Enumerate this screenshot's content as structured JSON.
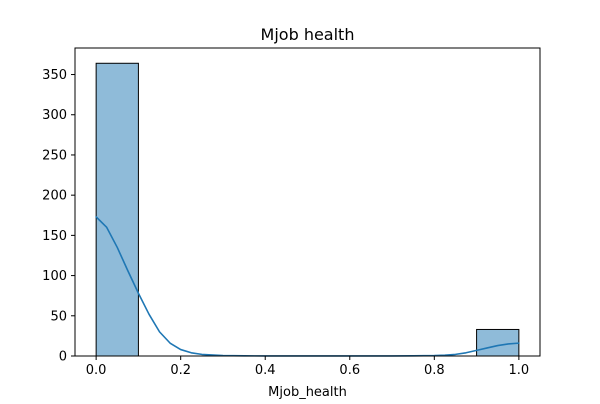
{
  "chart_data": {
    "type": "bar",
    "title": "Mjob health",
    "xlabel": "Mjob_health",
    "ylabel": "",
    "xlim": [
      -0.05,
      1.05
    ],
    "ylim": [
      0,
      383
    ],
    "grid": false,
    "bar_color": "#1f77b4",
    "bar_opacity": 0.5,
    "edge_color": "#000000",
    "kde_color": "#1f77b4",
    "bins": [
      {
        "x0": 0.0,
        "x1": 0.1,
        "count": 364
      },
      {
        "x0": 0.1,
        "x1": 0.2,
        "count": 0
      },
      {
        "x0": 0.2,
        "x1": 0.3,
        "count": 0
      },
      {
        "x0": 0.3,
        "x1": 0.4,
        "count": 0
      },
      {
        "x0": 0.4,
        "x1": 0.5,
        "count": 0
      },
      {
        "x0": 0.5,
        "x1": 0.6,
        "count": 0
      },
      {
        "x0": 0.6,
        "x1": 0.7,
        "count": 0
      },
      {
        "x0": 0.7,
        "x1": 0.8,
        "count": 0
      },
      {
        "x0": 0.8,
        "x1": 0.9,
        "count": 0
      },
      {
        "x0": 0.9,
        "x1": 1.0,
        "count": 33
      }
    ],
    "kde": {
      "x": [
        0.0,
        0.025,
        0.05,
        0.075,
        0.1,
        0.125,
        0.15,
        0.175,
        0.2,
        0.225,
        0.25,
        0.3,
        0.35,
        0.4,
        0.5,
        0.6,
        0.7,
        0.75,
        0.8,
        0.825,
        0.85,
        0.875,
        0.9,
        0.925,
        0.95,
        0.975,
        1.0
      ],
      "y": [
        173,
        160,
        135,
        106,
        78,
        52,
        30,
        16,
        8,
        4,
        2,
        0.5,
        0.2,
        0.1,
        0.05,
        0.05,
        0.1,
        0.2,
        0.5,
        1,
        2,
        4,
        7,
        10,
        13,
        15,
        16
      ]
    },
    "xticks": [
      {
        "value": 0.0,
        "label": "0.0"
      },
      {
        "value": 0.2,
        "label": "0.2"
      },
      {
        "value": 0.4,
        "label": "0.4"
      },
      {
        "value": 0.6,
        "label": "0.6"
      },
      {
        "value": 0.8,
        "label": "0.8"
      },
      {
        "value": 1.0,
        "label": "1.0"
      }
    ],
    "yticks": [
      {
        "value": 0,
        "label": "0"
      },
      {
        "value": 50,
        "label": "50"
      },
      {
        "value": 100,
        "label": "100"
      },
      {
        "value": 150,
        "label": "150"
      },
      {
        "value": 200,
        "label": "200"
      },
      {
        "value": 250,
        "label": "250"
      },
      {
        "value": 300,
        "label": "300"
      },
      {
        "value": 350,
        "label": "350"
      }
    ]
  }
}
